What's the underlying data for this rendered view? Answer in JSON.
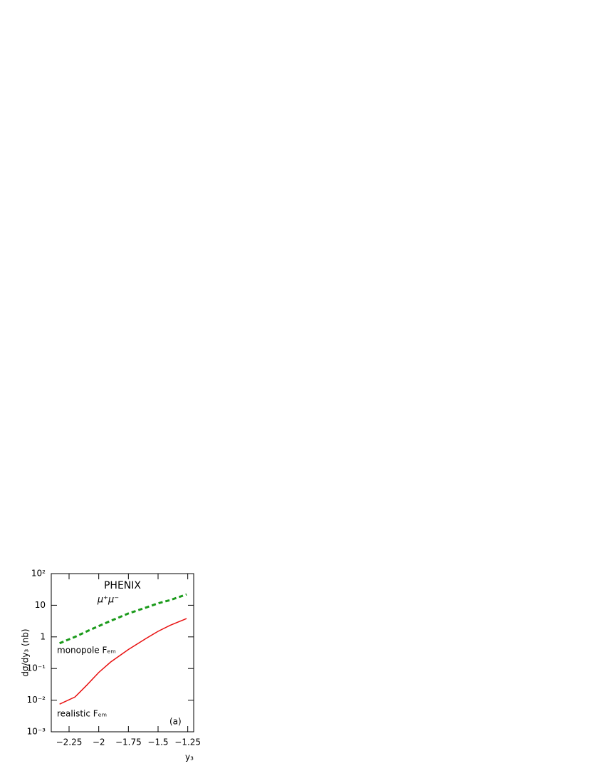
{
  "chart_data": {
    "type": "line",
    "ylabel": "dσ/dy₃ (nb)",
    "xlabel": "y₃",
    "annotations": [
      "PHENIX",
      "μ⁺μ⁻",
      "monopole Fₑₘ",
      "realistic Fₑₘ",
      "(a)"
    ],
    "log_y": true,
    "xlim": [
      -2.4,
      -1.2
    ],
    "ylim": [
      0.001,
      100
    ],
    "xticks": [
      {
        "value": -2.25,
        "label": "−2.25"
      },
      {
        "value": -2,
        "label": "−2"
      },
      {
        "value": -1.75,
        "label": "−1.75"
      },
      {
        "value": -1.5,
        "label": "−1.5"
      },
      {
        "value": -1.25,
        "label": "−1.25"
      }
    ],
    "yticks": [
      {
        "value": 0.001,
        "label": "10⁻³"
      },
      {
        "value": 0.01,
        "label": "10⁻²"
      },
      {
        "value": 0.1,
        "label": "10⁻¹"
      },
      1,
      10,
      {
        "value": 100,
        "label": "10²"
      }
    ],
    "x": [
      -2.33,
      -2.2,
      -2.1,
      -2.0,
      -1.9,
      -1.75,
      -1.6,
      -1.5,
      -1.4,
      -1.26
    ],
    "series": [
      {
        "name": "monopole",
        "color": "#1a9a1a",
        "dash": true,
        "values": [
          0.63,
          1.0,
          1.5,
          2.2,
          3.2,
          5.5,
          8.5,
          11.5,
          14.5,
          22
        ]
      },
      {
        "name": "realistic",
        "color": "#e81010",
        "dash": false,
        "values": [
          0.0075,
          0.0126,
          0.03,
          0.075,
          0.16,
          0.4,
          0.9,
          1.5,
          2.3,
          3.8
        ]
      }
    ]
  }
}
